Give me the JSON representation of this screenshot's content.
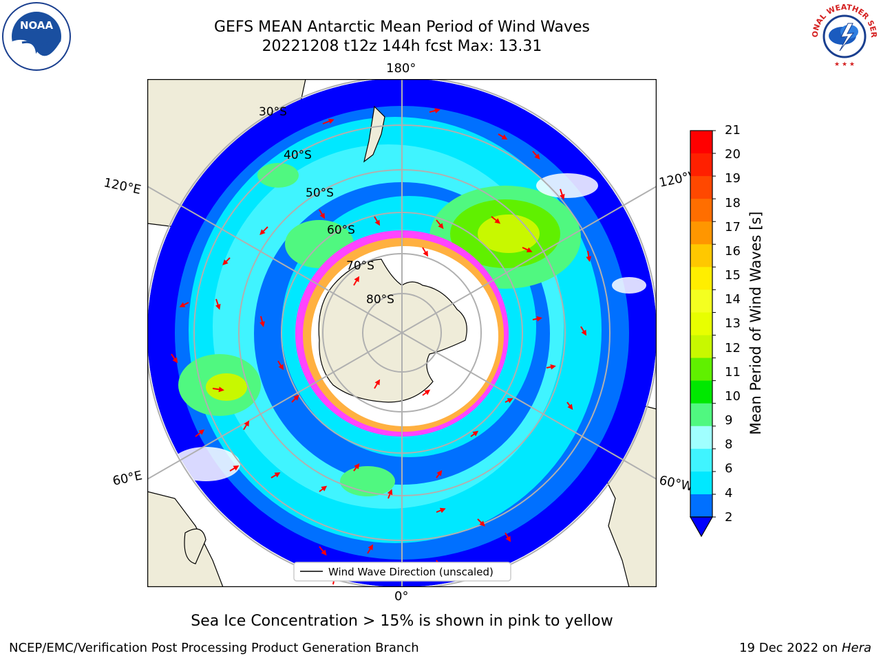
{
  "header": {
    "title_line1": "GEFS MEAN Antarctic Mean Period of Wind Waves",
    "title_line2": "20221208 t12z 144h fcst   Max: 13.31"
  },
  "logos": {
    "left": {
      "icon": "noaa-logo-icon",
      "text": "NOAA"
    },
    "right": {
      "icon": "nws-logo-icon",
      "text": "NATIONAL WEATHER SERVICE"
    }
  },
  "map": {
    "projection": "south-polar-stereographic",
    "longitude_labels": {
      "top": "180°",
      "bottom": "0°",
      "upper_left": "120°E",
      "upper_right": "120°W",
      "lower_left": "60°E",
      "lower_right": "60°W"
    },
    "latitude_labels": [
      "30°S",
      "40°S",
      "50°S",
      "60°S",
      "70°S",
      "80°S"
    ],
    "legend_entry": "Wind Wave Direction (unscaled)",
    "arrow_color": "#ff0000",
    "land_color": "#efecd9",
    "ice_colors": [
      "#ff44ff",
      "#ffb040",
      "#ffff66"
    ]
  },
  "colorbar": {
    "label": "Mean Period of Wind Waves [s]",
    "ticks": [
      "21",
      "20",
      "19",
      "18",
      "17",
      "16",
      "15",
      "14",
      "13",
      "12",
      "11",
      "10",
      "9",
      "8",
      "6",
      "4",
      "2"
    ],
    "colors_bottom_to_top": [
      "#0070ff",
      "#00e8ff",
      "#40f4ff",
      "#a0ffff",
      "#50f880",
      "#00e800",
      "#60f000",
      "#c8f800",
      "#e8ff00",
      "#f4ff20",
      "#ffee00",
      "#ffc800",
      "#ff9600",
      "#ff6e00",
      "#ff4800",
      "#ff2000",
      "#ff0000"
    ],
    "under_color": "#0000ff"
  },
  "subtitle": "Sea Ice Concentration > 15% is shown in pink to yellow",
  "footer": {
    "left": "NCEP/EMC/Verification Post Processing Product Generation Branch",
    "right_date": "19 Dec 2022 on ",
    "right_host": "Hera"
  }
}
